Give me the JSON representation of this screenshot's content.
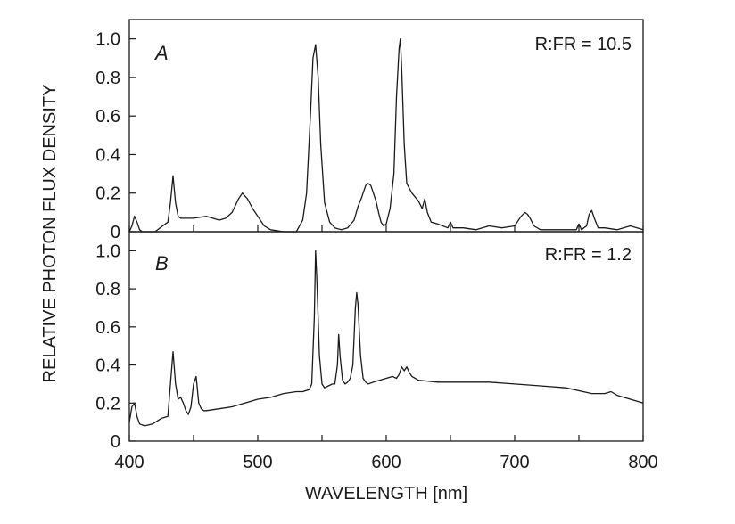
{
  "chart_data": [
    {
      "type": "line",
      "panel_label": "A",
      "annotation": "R:FR = 10.5",
      "xlim": [
        400,
        800
      ],
      "ylim": [
        0,
        1.1
      ],
      "y_ticks": [
        "0",
        "0.2",
        "0.4",
        "0.6",
        "0.8",
        "1.0"
      ],
      "y_tick_values": [
        0,
        0.2,
        0.4,
        0.6,
        0.8,
        1.0
      ],
      "series": [
        {
          "x": [
            400,
            402,
            404,
            406,
            408,
            410,
            420,
            430,
            432,
            434,
            436,
            438,
            440,
            450,
            460,
            470,
            475,
            480,
            485,
            488,
            492,
            496,
            500,
            505,
            510,
            520,
            530,
            535,
            538,
            541,
            543,
            545,
            547,
            549,
            552,
            556,
            560,
            565,
            570,
            575,
            578,
            581,
            584,
            586,
            588,
            590,
            592,
            594,
            596,
            598,
            600,
            603,
            606,
            608,
            610,
            611,
            612,
            614,
            616,
            620,
            625,
            628,
            630,
            632,
            635,
            640,
            648,
            650,
            652,
            660,
            670,
            680,
            690,
            700,
            705,
            708,
            710,
            712,
            715,
            720,
            730,
            740,
            748,
            750,
            752,
            756,
            758,
            760,
            762,
            765,
            770,
            780,
            790,
            800
          ],
          "y": [
            0.0,
            0.03,
            0.08,
            0.05,
            0.01,
            0.0,
            0.0,
            0.05,
            0.15,
            0.29,
            0.15,
            0.08,
            0.07,
            0.07,
            0.08,
            0.06,
            0.07,
            0.1,
            0.17,
            0.2,
            0.17,
            0.12,
            0.08,
            0.03,
            0.01,
            0.0,
            0.0,
            0.06,
            0.2,
            0.6,
            0.9,
            0.97,
            0.8,
            0.45,
            0.15,
            0.05,
            0.02,
            0.01,
            0.02,
            0.06,
            0.13,
            0.18,
            0.24,
            0.25,
            0.24,
            0.2,
            0.16,
            0.1,
            0.05,
            0.03,
            0.04,
            0.12,
            0.3,
            0.7,
            0.95,
            1.0,
            0.85,
            0.45,
            0.25,
            0.2,
            0.16,
            0.12,
            0.17,
            0.1,
            0.05,
            0.04,
            0.02,
            0.05,
            0.02,
            0.02,
            0.01,
            0.03,
            0.02,
            0.03,
            0.08,
            0.1,
            0.09,
            0.07,
            0.03,
            0.01,
            0.01,
            0.01,
            0.01,
            0.04,
            0.01,
            0.03,
            0.09,
            0.11,
            0.07,
            0.02,
            0.02,
            0.01,
            0.03,
            0.01
          ]
        }
      ]
    },
    {
      "type": "line",
      "panel_label": "B",
      "annotation": "R:FR = 1.2",
      "xlim": [
        400,
        800
      ],
      "ylim": [
        0,
        1.1
      ],
      "xlabel": "WAVELENGTH [nm]",
      "x_ticks": [
        "400",
        "500",
        "600",
        "700",
        "800"
      ],
      "x_tick_values": [
        400,
        500,
        600,
        700,
        800
      ],
      "y_ticks": [
        "0",
        "0.2",
        "0.4",
        "0.6",
        "0.8",
        "1.0"
      ],
      "y_tick_values": [
        0,
        0.2,
        0.4,
        0.6,
        0.8,
        1.0
      ],
      "series": [
        {
          "x": [
            400,
            402,
            404,
            406,
            408,
            412,
            418,
            425,
            430,
            432,
            434,
            436,
            438,
            440,
            442,
            444,
            446,
            448,
            450,
            452,
            454,
            456,
            458,
            460,
            470,
            480,
            490,
            500,
            510,
            520,
            530,
            535,
            540,
            542,
            544,
            545,
            546,
            548,
            550,
            552,
            555,
            558,
            560,
            562,
            563,
            564,
            566,
            568,
            570,
            572,
            574,
            576,
            577,
            578,
            580,
            582,
            584,
            586,
            590,
            595,
            600,
            605,
            608,
            610,
            612,
            614,
            616,
            618,
            620,
            625,
            640,
            660,
            680,
            700,
            720,
            740,
            760,
            770,
            775,
            780,
            790,
            800
          ],
          "y": [
            0.1,
            0.18,
            0.2,
            0.13,
            0.09,
            0.08,
            0.09,
            0.12,
            0.13,
            0.3,
            0.47,
            0.3,
            0.22,
            0.23,
            0.2,
            0.16,
            0.14,
            0.18,
            0.3,
            0.34,
            0.2,
            0.17,
            0.16,
            0.16,
            0.17,
            0.18,
            0.2,
            0.22,
            0.23,
            0.25,
            0.26,
            0.26,
            0.27,
            0.3,
            0.65,
            1.0,
            0.85,
            0.45,
            0.3,
            0.28,
            0.29,
            0.3,
            0.3,
            0.4,
            0.56,
            0.45,
            0.32,
            0.3,
            0.31,
            0.33,
            0.4,
            0.7,
            0.78,
            0.72,
            0.45,
            0.33,
            0.31,
            0.3,
            0.31,
            0.32,
            0.33,
            0.34,
            0.33,
            0.35,
            0.39,
            0.37,
            0.39,
            0.36,
            0.34,
            0.32,
            0.31,
            0.31,
            0.31,
            0.3,
            0.29,
            0.28,
            0.25,
            0.25,
            0.26,
            0.24,
            0.22,
            0.2
          ]
        }
      ]
    }
  ],
  "ylabel": "RELATIVE PHOTON FLUX DENSITY"
}
